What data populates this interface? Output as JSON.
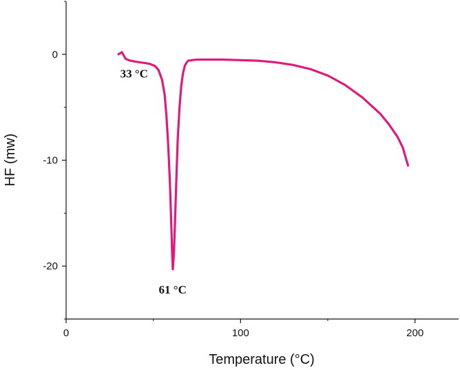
{
  "chart_data": {
    "type": "line",
    "title": "",
    "xlabel": "Temperature (°C)",
    "ylabel": "HF (mw)",
    "xlim": [
      0,
      225
    ],
    "ylim": [
      -25,
      5
    ],
    "x_ticks": [
      0,
      100,
      200
    ],
    "x_tick_labels": [
      "0",
      "100",
      "200"
    ],
    "y_ticks": [
      0,
      -10,
      -20
    ],
    "y_tick_labels": [
      "0",
      "-10",
      "-20"
    ],
    "grid": false,
    "line_color": "#e0197d",
    "series": [
      {
        "x": [
          30,
          31,
          32,
          33,
          34,
          35,
          37,
          40,
          44,
          48,
          51,
          53,
          55,
          56.5,
          57.5,
          58.5,
          59.5,
          60.2,
          60.8,
          61.2,
          61.8,
          62.5,
          63.2,
          64,
          65,
          66,
          67,
          68,
          69,
          70,
          72,
          75,
          80,
          90,
          100,
          110,
          120,
          130,
          140,
          150,
          160,
          170,
          180,
          185,
          190,
          193,
          196
        ],
        "y": [
          0.0,
          0.1,
          0.2,
          -0.1,
          -0.4,
          -0.5,
          -0.6,
          -0.7,
          -0.8,
          -0.9,
          -1.1,
          -1.5,
          -2.4,
          -3.8,
          -5.8,
          -8.5,
          -12.0,
          -15.5,
          -18.8,
          -20.3,
          -18.8,
          -15.5,
          -11.8,
          -8.0,
          -5.0,
          -3.0,
          -1.8,
          -1.1,
          -0.8,
          -0.6,
          -0.55,
          -0.5,
          -0.5,
          -0.5,
          -0.55,
          -0.6,
          -0.75,
          -1.0,
          -1.4,
          -2.0,
          -2.9,
          -4.1,
          -5.6,
          -6.6,
          -7.8,
          -8.8,
          -10.5
        ]
      }
    ],
    "annotations": [
      {
        "text": "33 °C",
        "x": 33,
        "y": -0.1
      },
      {
        "text": "61 °C",
        "x": 61,
        "y": -20.3
      }
    ]
  }
}
